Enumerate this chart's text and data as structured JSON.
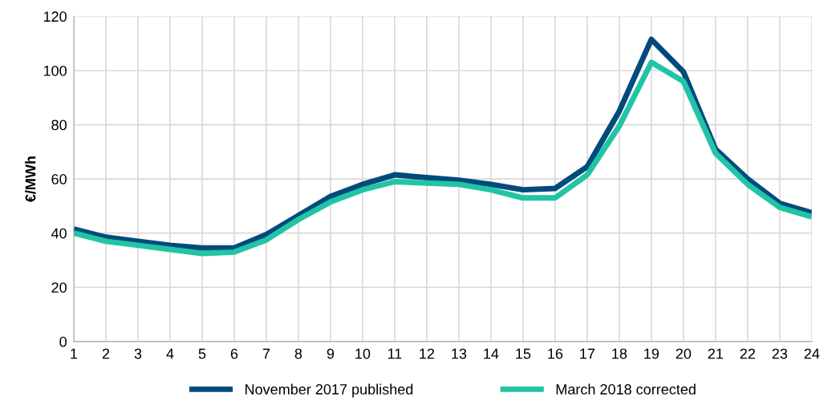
{
  "chart_data": {
    "type": "line",
    "ylabel": "€/MWh",
    "categories": [
      "1",
      "2",
      "3",
      "4",
      "5",
      "6",
      "7",
      "8",
      "9",
      "10",
      "11",
      "12",
      "13",
      "14",
      "15",
      "16",
      "17",
      "18",
      "19",
      "20",
      "21",
      "22",
      "23",
      "24"
    ],
    "series": [
      {
        "name": "November 2017 published",
        "color": "#004b7c",
        "values": [
          41.5,
          38.5,
          37,
          35.5,
          34.5,
          34.5,
          39.5,
          46.5,
          53.5,
          58,
          61.5,
          60.5,
          59.5,
          58,
          56,
          56.5,
          64.5,
          85,
          111.5,
          99.5,
          71,
          60,
          51,
          47.5
        ]
      },
      {
        "name": "March 2018 corrected",
        "color": "#21c4a5",
        "values": [
          40,
          37,
          35.5,
          34,
          32.5,
          33,
          37.5,
          45,
          51.5,
          56,
          59,
          58.5,
          58,
          56,
          53,
          53,
          61.5,
          79.5,
          103,
          96,
          69.5,
          58,
          49.5,
          46
        ]
      }
    ],
    "ylim": [
      0,
      120
    ],
    "yticks": [
      0,
      20,
      40,
      60,
      80,
      100,
      120
    ],
    "grid": true,
    "legend": "bottom",
    "marker": "none",
    "line_style": "solid"
  }
}
